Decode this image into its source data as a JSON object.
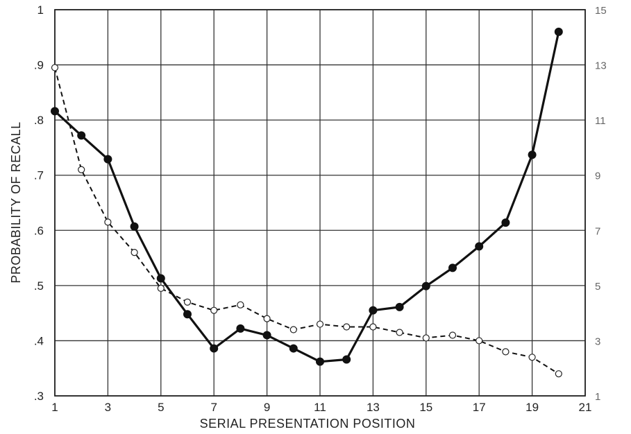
{
  "chart_data": {
    "type": "line",
    "title": "",
    "xlabel": "SERIAL PRESENTATION POSITION",
    "ylabel": "PROBABILITY OF RECALL",
    "xlim": [
      1,
      21
    ],
    "ylim": [
      0.3,
      1.0
    ],
    "y2lim": [
      1,
      15
    ],
    "grid": true,
    "x_ticks": [
      "1",
      "3",
      "5",
      "7",
      "9",
      "11",
      "13",
      "15",
      "17",
      "19",
      "21"
    ],
    "y_ticks": [
      ".3",
      ".4",
      ".5",
      ".6",
      ".7",
      ".8",
      ".9",
      "1"
    ],
    "y2_ticks": [
      "1",
      "3",
      "5",
      "7",
      "9",
      "11",
      "13",
      "15"
    ],
    "x": [
      1,
      2,
      3,
      4,
      5,
      6,
      7,
      8,
      9,
      10,
      11,
      12,
      13,
      14,
      15,
      16,
      17,
      18,
      19,
      20
    ],
    "series": [
      {
        "style": "solid line, filled circles",
        "axis": "left",
        "values": [
          0.816,
          0.772,
          0.729,
          0.607,
          0.513,
          0.448,
          0.386,
          0.422,
          0.41,
          0.386,
          0.362,
          0.366,
          0.455,
          0.461,
          0.499,
          0.532,
          0.571,
          0.614,
          0.737,
          0.96
        ]
      },
      {
        "style": "dashed line, open circles",
        "axis": "right",
        "values": [
          12.9,
          9.2,
          7.3,
          6.2,
          4.9,
          4.4,
          4.1,
          4.3,
          3.8,
          3.4,
          3.6,
          3.5,
          3.5,
          3.3,
          3.1,
          3.2,
          3.0,
          2.6,
          2.4,
          1.8
        ]
      }
    ]
  }
}
